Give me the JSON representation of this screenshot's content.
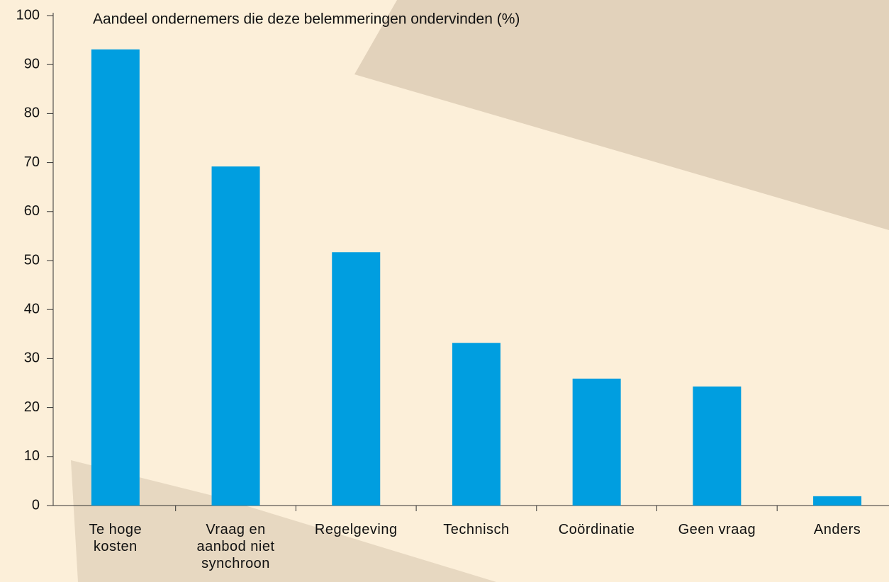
{
  "chart_data": {
    "type": "bar",
    "title": "Aandeel ondernemers die deze belemmeringen ondervinden (%)",
    "categories": [
      "Te hoge kosten",
      "Vraag en aanbod niet synchroon",
      "Regelgeving",
      "Technisch",
      "Coördinatie",
      "Geen vraag",
      "Anders"
    ],
    "values": [
      93.1,
      69.2,
      51.7,
      33.2,
      25.9,
      24.3,
      1.9
    ],
    "color": "#009ee0",
    "ylim": [
      0,
      100
    ],
    "yticks": [
      0,
      10,
      20,
      30,
      40,
      50,
      60,
      70,
      80,
      90,
      100
    ],
    "grid": false
  }
}
